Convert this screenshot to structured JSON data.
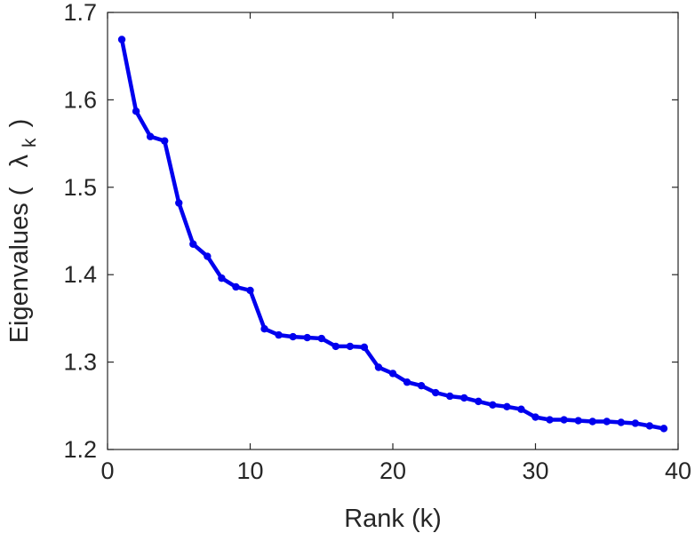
{
  "chart_data": {
    "type": "line",
    "title": "",
    "xlabel": "Rank (k)",
    "ylabel": {
      "text": "Eigenvalues (",
      "symbol": "λ",
      "subscript": "k",
      "close": ")"
    },
    "xlim": [
      0,
      40
    ],
    "ylim": [
      1.2,
      1.7
    ],
    "xticks": [
      0,
      10,
      20,
      30,
      40
    ],
    "xtick_labels": [
      "0",
      "10",
      "20",
      "30",
      "40"
    ],
    "yticks": [
      1.2,
      1.3,
      1.4,
      1.5,
      1.6,
      1.7
    ],
    "ytick_labels": [
      "1.2",
      "1.3",
      "1.4",
      "1.5",
      "1.6",
      "1.7"
    ],
    "grid": false,
    "line_color": "#0000ee",
    "series": [
      {
        "x": [
          1,
          2,
          3,
          4,
          5,
          6,
          7,
          8,
          9,
          10,
          11,
          12,
          13,
          14,
          15,
          16,
          17,
          18,
          19,
          20,
          21,
          22,
          23,
          24,
          25,
          26,
          27,
          28,
          29,
          30,
          31,
          32,
          33,
          34,
          35,
          36,
          37,
          38,
          39
        ],
        "y": [
          1.669,
          1.587,
          1.558,
          1.553,
          1.482,
          1.435,
          1.421,
          1.396,
          1.386,
          1.382,
          1.338,
          1.331,
          1.329,
          1.328,
          1.327,
          1.318,
          1.318,
          1.317,
          1.294,
          1.287,
          1.277,
          1.273,
          1.265,
          1.261,
          1.259,
          1.255,
          1.251,
          1.249,
          1.246,
          1.237,
          1.234,
          1.234,
          1.233,
          1.232,
          1.232,
          1.231,
          1.23,
          1.227,
          1.224
        ]
      }
    ]
  }
}
